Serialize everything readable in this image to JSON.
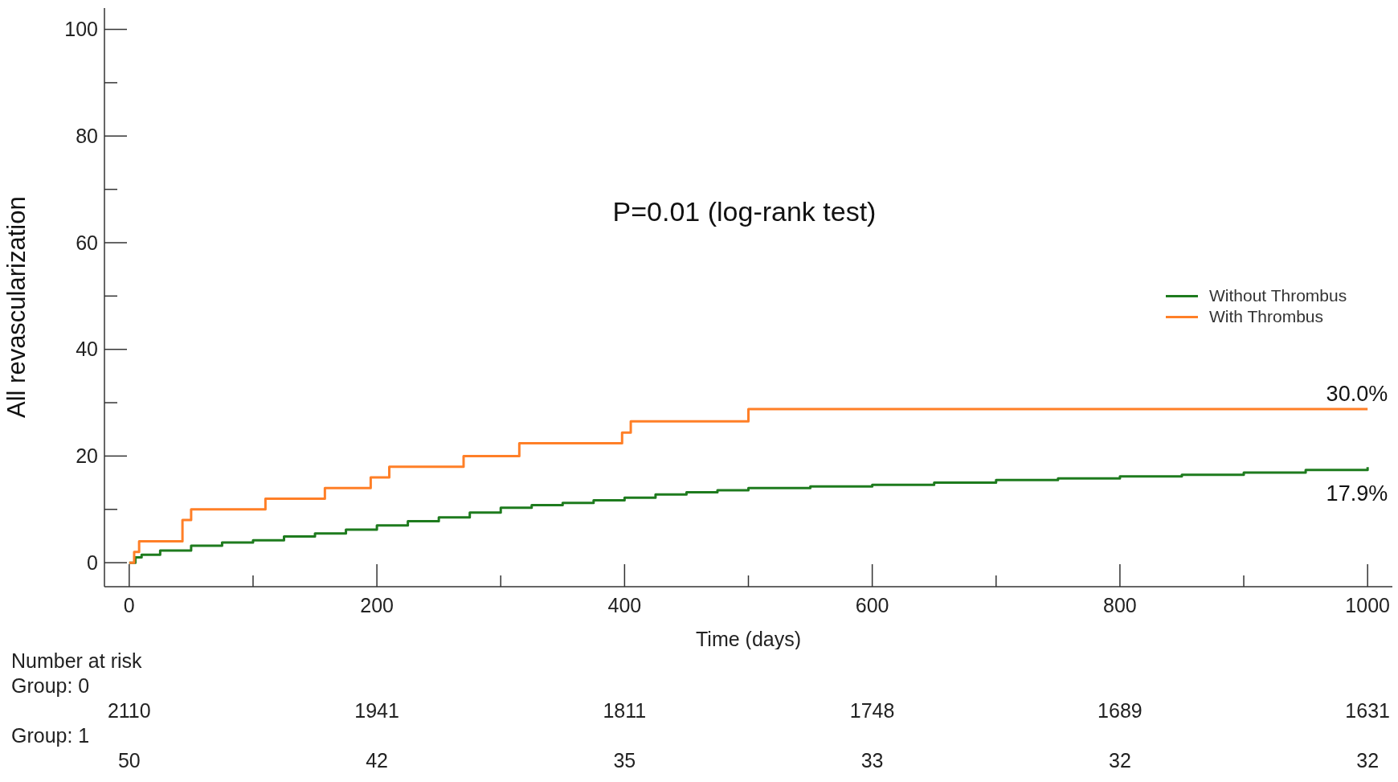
{
  "chart_data": {
    "type": "step",
    "xlabel": "Time (days)",
    "ylabel": "All revascularization",
    "xlim": [
      -20,
      1020
    ],
    "ylim": [
      -4.5,
      104
    ],
    "xticks": [
      0,
      {
        "value": 100,
        "label": null
      },
      200,
      {
        "value": 300,
        "label": null
      },
      400,
      {
        "value": 500,
        "label": null
      },
      600,
      {
        "value": 700,
        "label": null
      },
      800,
      {
        "value": 900,
        "label": null
      },
      1000
    ],
    "yticks": [
      0,
      {
        "value": 10,
        "label": null
      },
      20,
      {
        "value": 30,
        "label": null
      },
      40,
      {
        "value": 50,
        "label": null
      },
      60,
      {
        "value": 70,
        "label": null
      },
      80,
      {
        "value": 90,
        "label": null
      },
      100
    ],
    "series": [
      {
        "name": "Without Thrombus",
        "color": "#1e7b1e",
        "x": [
          0,
          5,
          10,
          25,
          50,
          75,
          100,
          125,
          150,
          175,
          200,
          225,
          250,
          275,
          300,
          325,
          350,
          375,
          400,
          425,
          450,
          475,
          500,
          550,
          600,
          650,
          700,
          750,
          800,
          850,
          900,
          950,
          1000
        ],
        "values": [
          0,
          1,
          1.5,
          2.3,
          3.2,
          3.8,
          4.2,
          4.9,
          5.5,
          6.2,
          7,
          7.8,
          8.5,
          9.4,
          10.3,
          10.8,
          11.2,
          11.7,
          12.2,
          12.8,
          13.2,
          13.6,
          14,
          14.3,
          14.6,
          15,
          15.5,
          15.8,
          16.2,
          16.5,
          16.9,
          17.4,
          17.9
        ]
      },
      {
        "name": "With Thrombus",
        "color": "#ff7f27",
        "x": [
          0,
          4,
          8,
          43,
          50,
          110,
          158,
          195,
          210,
          270,
          315,
          398,
          405,
          500,
          1000
        ],
        "values": [
          0,
          2,
          4,
          8,
          10,
          12,
          14,
          16,
          18,
          20,
          22.4,
          24.4,
          26.5,
          28.8,
          28.8
        ]
      }
    ],
    "annotations": [
      "P=0.01 (log-rank test)",
      {
        "text": "30.0%",
        "x": 1000,
        "y": 28.8
      },
      {
        "text": "17.9%",
        "x": 1000,
        "y": 17.9
      },
      "Number at risk",
      "Group: 0",
      "2110",
      "1941",
      "1811",
      "1748",
      "1689",
      "1631",
      "Group: 1",
      "50",
      "42",
      "35",
      "33",
      "32",
      "32"
    ],
    "legend": "right",
    "marker": "none",
    "line_style": "solid",
    "grid": false
  }
}
